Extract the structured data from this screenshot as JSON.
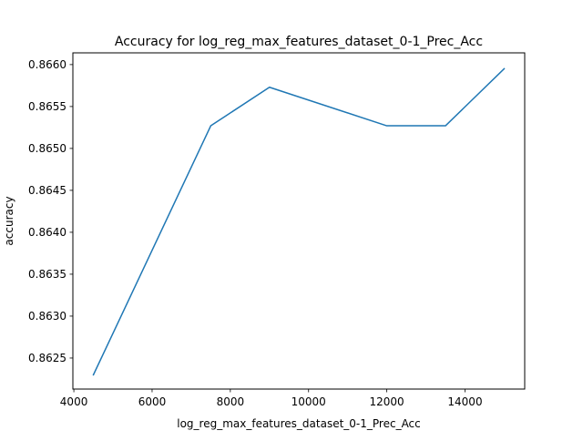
{
  "chart_data": {
    "type": "line",
    "title": "Accuracy for log_reg_max_features_dataset_0-1_Prec_Acc",
    "xlabel": "log_reg_max_features_dataset_0-1_Prec_Acc",
    "ylabel": "accuracy",
    "xlim": [
      3975,
      15525
    ],
    "ylim": [
      0.86213,
      0.86614
    ],
    "xticks": [
      4000,
      6000,
      8000,
      10000,
      12000,
      14000
    ],
    "xtick_labels": [
      "4000",
      "6000",
      "8000",
      "10000",
      "12000",
      "14000"
    ],
    "yticks": [
      0.8625,
      0.863,
      0.8635,
      0.864,
      0.8645,
      0.865,
      0.8655,
      0.866
    ],
    "ytick_labels": [
      "0.8625",
      "0.8630",
      "0.8635",
      "0.8640",
      "0.8645",
      "0.8650",
      "0.8655",
      "0.8660"
    ],
    "grid": false,
    "series": [
      {
        "x": [
          4500,
          7500,
          9000,
          12000,
          13500,
          15000
        ],
        "y": [
          0.8623,
          0.86527,
          0.86573,
          0.86527,
          0.86527,
          0.86595
        ],
        "color": "#1f77b4"
      }
    ]
  }
}
